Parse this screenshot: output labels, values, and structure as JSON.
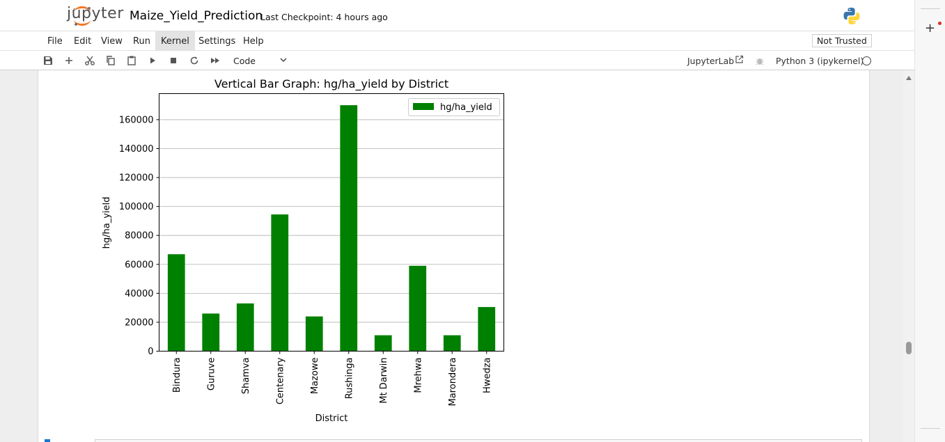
{
  "header": {
    "logo_text": "jupyter",
    "notebook_name": "Maize_Yield_Prediction",
    "checkpoint": "Last Checkpoint: 4 hours ago"
  },
  "menu": {
    "items": [
      "File",
      "Edit",
      "View",
      "Run",
      "Kernel",
      "Settings",
      "Help"
    ],
    "active": "Kernel",
    "trust_label": "Not Trusted"
  },
  "toolbar": {
    "icons": [
      "save-icon",
      "add-cell-icon",
      "cut-icon",
      "copy-icon",
      "paste-icon",
      "run-icon",
      "stop-icon",
      "restart-icon",
      "fast-forward-icon"
    ],
    "cell_type": "Code",
    "jupyterlab_label": "JupyterLab",
    "kernel_label": "Python 3 (ipykernel)"
  },
  "chart_data": {
    "type": "bar",
    "title": "Vertical Bar Graph: hg/ha_yield by District",
    "xlabel": "District",
    "ylabel": "hg/ha_yield",
    "categories": [
      "Bindura",
      "Guruve",
      "Shamva",
      "Centenary",
      "Mazowe",
      "Rushinga",
      "Mt Darwin",
      "Mrehwa",
      "Marondera",
      "Hwedza"
    ],
    "series": [
      {
        "name": "hg/ha_yield",
        "color": "#008000",
        "values": [
          67000,
          26000,
          33000,
          94500,
          24000,
          170000,
          11000,
          59000,
          11000,
          30500
        ]
      }
    ],
    "ylim": [
      0,
      178000
    ],
    "yticks": [
      0,
      20000,
      40000,
      60000,
      80000,
      100000,
      120000,
      140000,
      160000
    ],
    "grid": "horizontal",
    "legend": "top-right"
  }
}
